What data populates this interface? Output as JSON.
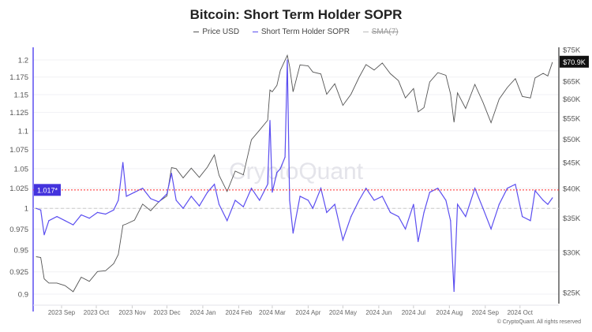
{
  "chart_data": {
    "type": "line",
    "title": "Bitcoin: Short Term Holder SOPR",
    "legend": [
      {
        "name": "Price USD",
        "color": "#555555"
      },
      {
        "name": "Short Term Holder SOPR",
        "color": "#5b4ef0"
      },
      {
        "name": "SMA(7)",
        "color": "#bbbbbb",
        "disabled": true
      }
    ],
    "legend_position": "top",
    "x_ticks": [
      "2023 Sep",
      "2023 Oct",
      "2023 Nov",
      "2023 Dec",
      "2024 Jan",
      "2024 Feb",
      "2024 Mar",
      "2024 Apr",
      "2024 May",
      "2024 Jun",
      "2024 Jul",
      "2024 Aug",
      "2024 Sep",
      "2024 Oct"
    ],
    "left_axis": {
      "scale": "log",
      "range": [
        0.9,
        1.2
      ],
      "ticks": [
        "1.2",
        "1.175",
        "1.15",
        "1.125",
        "1.1",
        "1.075",
        "1.05",
        "1.025",
        "1",
        "0.975",
        "0.95",
        "0.925",
        "0.9"
      ]
    },
    "right_axis": {
      "scale": "log",
      "range": [
        25000,
        75000
      ],
      "ticks": [
        "$75K",
        "$65K",
        "$60K",
        "$55K",
        "$50K",
        "$45K",
        "$40K",
        "$35K",
        "$30K",
        "$25K"
      ]
    },
    "current_price_label": "$70.9K",
    "threshold": {
      "value": 1.017,
      "label": "1.017*",
      "color": "#ff2a2a"
    },
    "reference_line": 1,
    "grid": true,
    "dates": [
      "2023-08-10",
      "2023-08-14",
      "2023-08-17",
      "2023-08-21",
      "2023-08-28",
      "2023-09-04",
      "2023-09-11",
      "2023-09-18",
      "2023-09-25",
      "2023-10-02",
      "2023-10-09",
      "2023-10-16",
      "2023-10-20",
      "2023-10-24",
      "2023-10-27",
      "2023-11-03",
      "2023-11-10",
      "2023-11-17",
      "2023-11-24",
      "2023-12-01",
      "2023-12-05",
      "2023-12-09",
      "2023-12-15",
      "2023-12-22",
      "2023-12-29",
      "2024-01-05",
      "2024-01-11",
      "2024-01-15",
      "2024-01-22",
      "2024-01-29",
      "2024-02-05",
      "2024-02-12",
      "2024-02-19",
      "2024-02-26",
      "2024-02-28",
      "2024-03-01",
      "2024-03-05",
      "2024-03-08",
      "2024-03-12",
      "2024-03-14",
      "2024-03-16",
      "2024-03-19",
      "2024-03-25",
      "2024-04-01",
      "2024-04-05",
      "2024-04-12",
      "2024-04-17",
      "2024-04-24",
      "2024-05-01",
      "2024-05-08",
      "2024-05-15",
      "2024-05-21",
      "2024-05-28",
      "2024-06-04",
      "2024-06-11",
      "2024-06-18",
      "2024-06-24",
      "2024-07-01",
      "2024-07-05",
      "2024-07-10",
      "2024-07-15",
      "2024-07-22",
      "2024-07-29",
      "2024-08-02",
      "2024-08-05",
      "2024-08-08",
      "2024-08-15",
      "2024-08-23",
      "2024-08-30",
      "2024-09-06",
      "2024-09-13",
      "2024-09-20",
      "2024-09-27",
      "2024-10-03",
      "2024-10-10",
      "2024-10-14",
      "2024-10-21",
      "2024-10-25",
      "2024-10-29"
    ],
    "series": [
      {
        "name": "Price USD",
        "axis": "right",
        "values": [
          29400,
          29300,
          26600,
          26100,
          26100,
          25800,
          25100,
          26800,
          26300,
          27500,
          27600,
          28500,
          29700,
          33900,
          34100,
          34700,
          37300,
          36200,
          37700,
          38700,
          44000,
          43800,
          42000,
          43900,
          42100,
          44100,
          46600,
          42500,
          39500,
          43300,
          42600,
          49900,
          52100,
          54500,
          62500,
          62000,
          63800,
          68300,
          71500,
          73100,
          69500,
          62000,
          70000,
          69700,
          67800,
          67200,
          61300,
          64300,
          58300,
          61300,
          66200,
          70100,
          68400,
          70600,
          67300,
          65200,
          60300,
          62900,
          56600,
          57700,
          64800,
          67600,
          66800,
          61400,
          54000,
          61700,
          57500,
          64100,
          59100,
          53900,
          60000,
          63200,
          65800,
          60700,
          60300,
          66000,
          67400,
          66600,
          70900
        ]
      },
      {
        "name": "Short Term Holder SOPR",
        "axis": "left",
        "values": [
          1.0,
          0.998,
          0.968,
          0.985,
          0.99,
          0.985,
          0.98,
          0.992,
          0.988,
          0.995,
          0.993,
          0.998,
          1.01,
          1.058,
          1.015,
          1.02,
          1.025,
          1.012,
          1.008,
          1.018,
          1.044,
          1.01,
          1.0,
          1.015,
          1.003,
          1.02,
          1.03,
          1.005,
          0.985,
          1.01,
          1.002,
          1.025,
          1.01,
          1.03,
          1.114,
          1.02,
          1.045,
          1.05,
          1.065,
          1.2,
          1.01,
          0.97,
          1.015,
          1.01,
          1.0,
          1.025,
          0.995,
          1.005,
          0.962,
          0.99,
          1.01,
          1.025,
          1.01,
          1.015,
          0.995,
          0.99,
          0.975,
          1.005,
          0.96,
          0.995,
          1.02,
          1.025,
          1.01,
          0.985,
          0.903,
          1.005,
          0.99,
          1.025,
          1.0,
          0.975,
          1.005,
          1.025,
          1.03,
          0.99,
          0.985,
          1.022,
          1.01,
          1.005,
          1.013
        ]
      }
    ]
  },
  "watermark": "CryptoQuant",
  "copyright": "© CryptoQuant. All rights reserved"
}
